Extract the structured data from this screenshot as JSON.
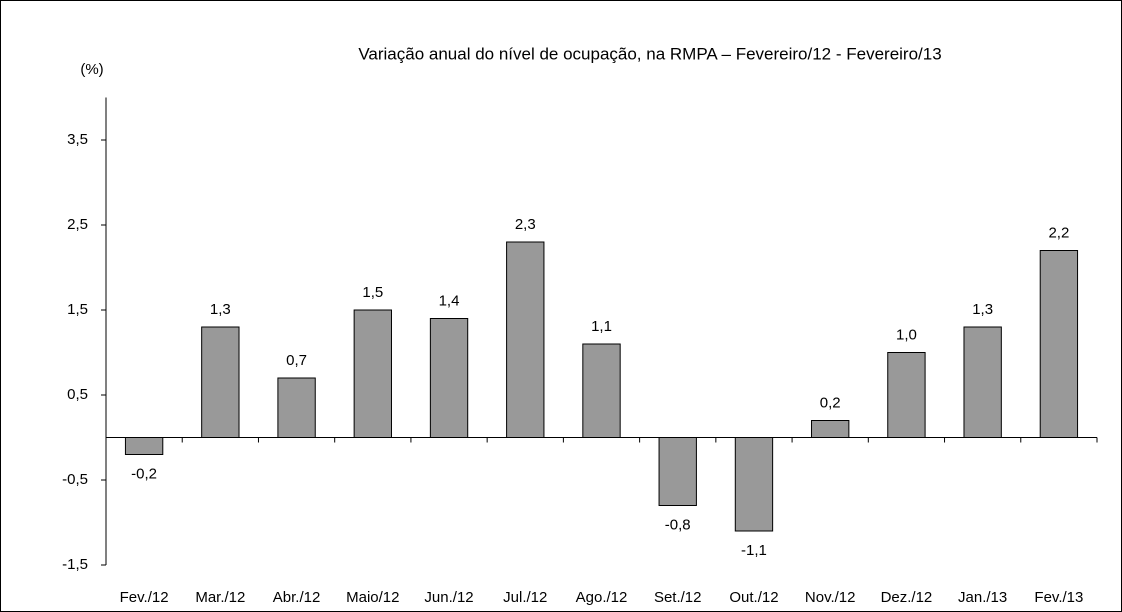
{
  "chart_data": {
    "type": "bar",
    "title": "Variação anual do nível de ocupação, na RMPA – Fevereiro/12 - Fevereiro/13",
    "ylabel": "(%)",
    "categories": [
      "Fev./12",
      "Mar./12",
      "Abr./12",
      "Maio/12",
      "Jun./12",
      "Jul./12",
      "Ago./12",
      "Set./12",
      "Out./12",
      "Nov./12",
      "Dez./12",
      "Jan./13",
      "Fev./13"
    ],
    "values": [
      -0.2,
      1.3,
      0.7,
      1.5,
      1.4,
      2.3,
      1.1,
      -0.8,
      -1.1,
      0.2,
      1.0,
      1.3,
      2.2
    ],
    "value_labels": [
      "-0,2",
      "1,3",
      "0,7",
      "1,5",
      "1,4",
      "2,3",
      "1,1",
      "-0,8",
      "-1,1",
      "0,2",
      "1,0",
      "1,3",
      "2,2"
    ],
    "color": "#999999",
    "ylim": [
      -1.5,
      4
    ],
    "yticks": [
      {
        "value": -1.5,
        "label": "-1,5"
      },
      {
        "value": -0.5,
        "label": "-0,5"
      },
      {
        "value": 0.5,
        "label": "0,5"
      },
      {
        "value": 1.5,
        "label": "1,5"
      },
      {
        "value": 2.5,
        "label": "2,5"
      },
      {
        "value": 3.5,
        "label": "3,5"
      }
    ],
    "grid": false
  }
}
